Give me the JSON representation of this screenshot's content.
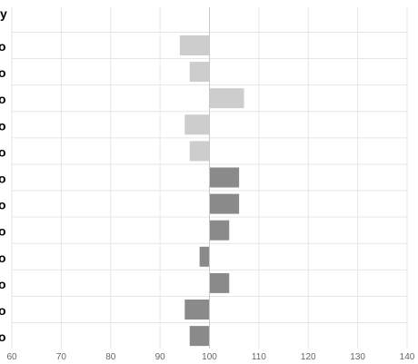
{
  "chart_data": {
    "type": "bar",
    "orientation": "horizontal",
    "title": "",
    "xlabel": "",
    "ylabel": "",
    "xlim": [
      60,
      140
    ],
    "baseline": 100,
    "grid": true,
    "x_ticks": [
      "60",
      "70",
      "80",
      "90",
      "100",
      "110",
      "120",
      "130",
      "140"
    ],
    "clipped_labels": {
      "top": "y",
      "rows": [
        "o",
        "o",
        "o",
        "o",
        "o",
        "o",
        "o",
        "o",
        "o",
        "o",
        "o",
        "o",
        "o",
        "o"
      ]
    },
    "series": [
      {
        "values": [
          94,
          96,
          107,
          95,
          96,
          106,
          106,
          104,
          98,
          104,
          95,
          96
        ],
        "colors": [
          "#cdcdcd",
          "#cdcdcd",
          "#cdcdcd",
          "#cdcdcd",
          "#cdcdcd",
          "#8a8a8a",
          "#8a8a8a",
          "#8a8a8a",
          "#8a8a8a",
          "#8a8a8a",
          "#8a8a8a",
          "#8a8a8a"
        ]
      }
    ]
  },
  "colors": {
    "grid": "#e6e6e6",
    "baseline": "#c8c8c8",
    "light_bar": "#cdcdcd",
    "dark_bar": "#8a8a8a"
  }
}
